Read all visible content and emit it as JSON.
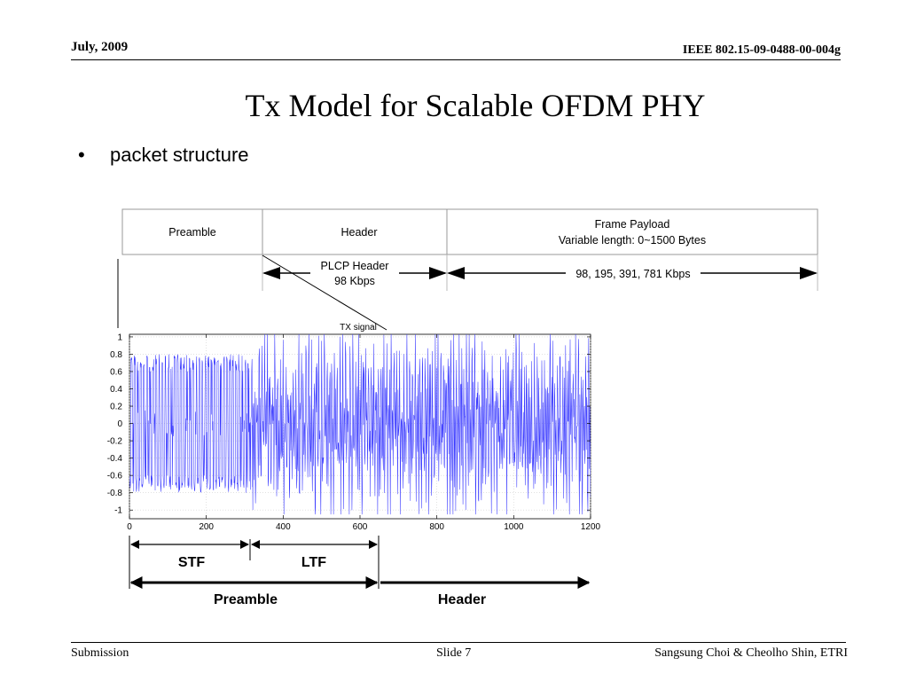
{
  "header": {
    "date": "July,  2009",
    "doc_id": "IEEE 802.15-09-0488-00-004g"
  },
  "title": "Tx Model for Scalable OFDM PHY",
  "bullet": {
    "symbol": "•",
    "text": "packet structure"
  },
  "frame": {
    "preamble_label": "Preamble",
    "header_label": "Header",
    "payload_line1": "Frame Payload",
    "payload_line2": "Variable length: 0~1500 Bytes",
    "plcp_line1": "PLCP Header",
    "plcp_line2": "98 Kbps",
    "payload_rates": "98, 195, 391, 781 Kbps"
  },
  "chart_data": {
    "type": "line",
    "title": "TX signal",
    "xlabel": "",
    "ylabel": "",
    "xlim": [
      0,
      1200
    ],
    "ylim": [
      -1.1,
      1.03
    ],
    "xticks": [
      0,
      200,
      400,
      600,
      800,
      1000,
      1200
    ],
    "xtick_labels": [
      "0",
      "200",
      "400",
      "600",
      "800",
      "1000",
      "1200"
    ],
    "yticks": [
      1,
      0.8,
      0.6,
      0.4,
      0.2,
      0,
      -0.2,
      -0.4,
      -0.6,
      -0.8,
      -1
    ],
    "ytick_labels": [
      "1",
      "0.8",
      "0.6",
      "0.4",
      "0.2",
      "0",
      "-0.2",
      "-0.4",
      "-0.6",
      "-0.8",
      "-1"
    ],
    "grid": true,
    "color": "#3a3aff",
    "segments": [
      {
        "label": "STF",
        "x_start": 0,
        "x_end": 320,
        "amplitude": 0.8
      },
      {
        "label": "LTF",
        "x_start": 320,
        "x_end": 640,
        "amplitude": 1.0
      },
      {
        "label": "Header",
        "x_start": 640,
        "x_end": 1200,
        "amplitude": 1.0
      }
    ]
  },
  "annotations": {
    "stf": "STF",
    "ltf": "LTF",
    "preamble": "Preamble",
    "header": "Header"
  },
  "footer": {
    "left": "Submission",
    "center": "Slide 7",
    "right": "Sangsung Choi & Cheolho Shin, ETRI"
  }
}
